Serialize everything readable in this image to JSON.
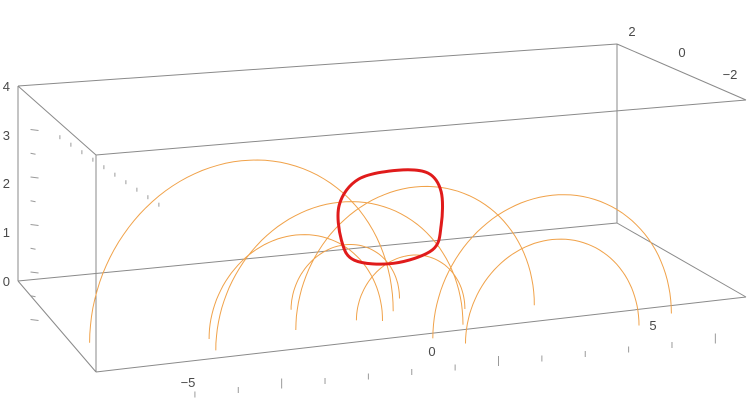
{
  "chart_data": {
    "type": "line",
    "title": "",
    "xlabel": "",
    "ylabel": "",
    "zlabel": "",
    "projection": "3d",
    "grid": false,
    "xlim": [
      -8,
      7
    ],
    "ylim": [
      -3,
      2.5
    ],
    "zlim": [
      0,
      4
    ],
    "x_ticks": [
      "−5",
      "0",
      "5"
    ],
    "y_ticks": [
      "2",
      "0",
      "−2"
    ],
    "z_ticks": [
      "0",
      "1",
      "2",
      "3",
      "4"
    ],
    "colors": {
      "arcs": "#f0a24a",
      "closed_curve": "#e01b1b",
      "box": "#8a8a8a"
    },
    "series": [
      {
        "style": "arcs",
        "arcs": [
          {
            "x0": -7.5,
            "x1": -0.5,
            "y": 0.8,
            "r": 3.5
          },
          {
            "x0": -5.2,
            "x1": 0.5,
            "y": -0.4,
            "r": 2.85
          },
          {
            "x0": -5.0,
            "x1": -1.0,
            "y": 0.3,
            "r": 2.0
          },
          {
            "x0": -3.0,
            "x1": 2.5,
            "y": 0.3,
            "r": 2.75
          },
          {
            "x0": -2.5,
            "x1": 0.0,
            "y": 1.5,
            "r": 1.25
          },
          {
            "x0": -1.5,
            "x1": 1.0,
            "y": 0.5,
            "r": 1.25
          },
          {
            "x0": 0.0,
            "x1": 4.0,
            "y": -1.5,
            "r": 2.0
          },
          {
            "x0": -0.5,
            "x1": 5.0,
            "y": -1.0,
            "r": 2.75
          }
        ]
      },
      {
        "style": "closed_curve",
        "x": [
          -1.7,
          -0.8,
          -0.1,
          0.2,
          0.2,
          0.0,
          -0.9,
          -1.8,
          -2.1,
          -2.15,
          -1.7
        ],
        "y": [
          0,
          0,
          0,
          0,
          0,
          0,
          0,
          0,
          0,
          0,
          0
        ],
        "z": [
          3.15,
          3.25,
          3.12,
          2.7,
          2.0,
          1.5,
          1.3,
          1.45,
          1.9,
          2.65,
          3.15
        ]
      }
    ]
  }
}
